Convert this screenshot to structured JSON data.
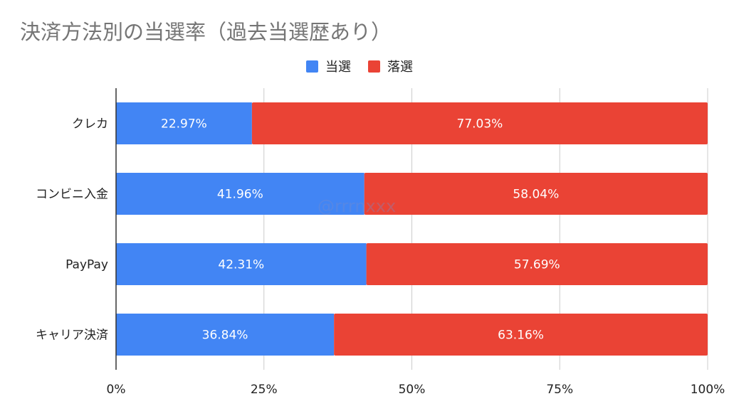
{
  "title": "決済方法別の当選率（過去当選歴あり）",
  "watermark": "@rrrnxxx",
  "colors": {
    "win": "#4285f4",
    "lose": "#ea4335",
    "grid": "#cccccc",
    "axis": "#333333"
  },
  "chart_data": {
    "type": "bar",
    "orientation": "horizontal",
    "stacked": "percent",
    "title": "決済方法別の当選率（過去当選歴あり）",
    "categories": [
      "クレカ",
      "コンビニ入金",
      "PayPay",
      "キャリア決済"
    ],
    "series": [
      {
        "name": "当選",
        "values": [
          22.97,
          41.96,
          42.31,
          36.84
        ],
        "labels": [
          "22.97%",
          "41.96%",
          "42.31%",
          "36.84%"
        ]
      },
      {
        "name": "落選",
        "values": [
          77.03,
          58.04,
          57.69,
          63.16
        ],
        "labels": [
          "77.03%",
          "58.04%",
          "57.69%",
          "63.16%"
        ]
      }
    ],
    "xlim": [
      0,
      100
    ],
    "xticks": [
      "0%",
      "25%",
      "50%",
      "75%",
      "100%"
    ],
    "legend": "top-center",
    "grid": true
  }
}
